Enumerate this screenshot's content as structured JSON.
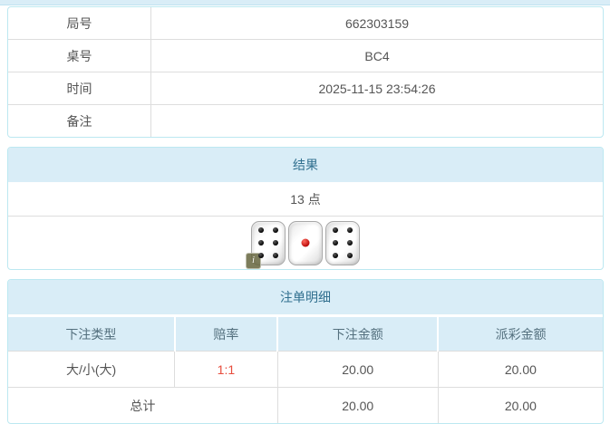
{
  "colors": {
    "header_bg": "#d9edf7",
    "header_text": "#31708f",
    "panel_border": "#bce8f1",
    "cell_border": "#dddddd",
    "body_text": "#555555",
    "odds_red": "#e74c3c"
  },
  "info_table": {
    "rows": [
      {
        "label": "局号",
        "value": "662303159"
      },
      {
        "label": "桌号",
        "value": "BC4"
      },
      {
        "label": "时间",
        "value": "2025-11-15 23:54:26"
      },
      {
        "label": "备注",
        "value": ""
      }
    ]
  },
  "result_panel": {
    "title": "结果",
    "points": "13 点",
    "dice": [
      {
        "value": 6,
        "color": "black"
      },
      {
        "value": 1,
        "color": "red"
      },
      {
        "value": 6,
        "color": "black"
      }
    ],
    "info_badge": "i"
  },
  "bet_panel": {
    "title": "注单明细",
    "columns": [
      "下注类型",
      "赔率",
      "下注金额",
      "派彩金额"
    ],
    "rows": [
      {
        "bet_type": "大/小(大)",
        "odds": "1:1",
        "bet_amount": "20.00",
        "payout": "20.00"
      }
    ],
    "total": {
      "label": "总计",
      "bet_amount": "20.00",
      "payout": "20.00"
    }
  }
}
